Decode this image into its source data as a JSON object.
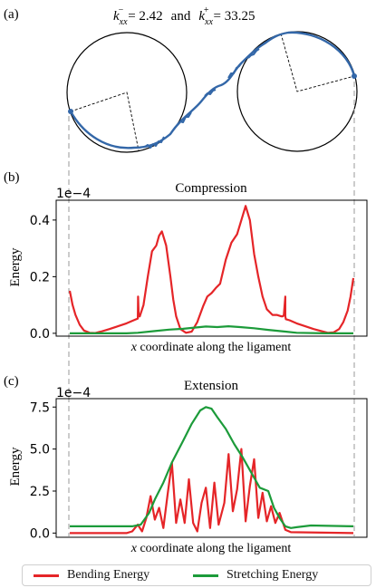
{
  "figure": {
    "panel_a": {
      "label": "(a)",
      "equation_left": "k",
      "equation_left_sub": "xx",
      "equation_left_sup": "−",
      "equation_left_value": "= 2.42",
      "equation_and": "and",
      "equation_right": "k",
      "equation_right_sub": "xx",
      "equation_right_sup": "+",
      "equation_right_value": "= 33.25",
      "ligament_color": "#3367a8"
    },
    "legend": {
      "bending_label": "Bending Energy",
      "stretching_label": "Stretching Energy",
      "bending_color": "#e52528",
      "stretching_color": "#1c9b3a"
    }
  },
  "chart_data": [
    {
      "type": "line",
      "panel_label": "(b)",
      "title": "Compression",
      "xlabel_italic": "x",
      "xlabel_rest": " coordinate along the ligament",
      "ylabel": "Energy",
      "offset_text": "1e−4",
      "ylim": [
        -0.01,
        0.47
      ],
      "yticks": [
        "0.0",
        "0.2",
        "0.4"
      ],
      "ytick_values": [
        0.0,
        0.2,
        0.4
      ],
      "xlim": [
        0,
        1
      ],
      "grid": false,
      "series": [
        {
          "name": "Bending Energy",
          "color": "#e52528",
          "x": [
            0.0,
            0.01,
            0.02,
            0.035,
            0.05,
            0.07,
            0.09,
            0.11,
            0.14,
            0.17,
            0.2,
            0.23,
            0.24,
            0.241,
            0.243,
            0.247,
            0.26,
            0.275,
            0.29,
            0.305,
            0.315,
            0.325,
            0.34,
            0.355,
            0.365,
            0.375,
            0.39,
            0.41,
            0.43,
            0.45,
            0.47,
            0.485,
            0.5,
            0.515,
            0.53,
            0.55,
            0.57,
            0.59,
            0.605,
            0.62,
            0.635,
            0.65,
            0.665,
            0.68,
            0.695,
            0.715,
            0.73,
            0.745,
            0.752,
            0.755,
            0.76,
            0.76,
            0.762,
            0.775,
            0.8,
            0.83,
            0.86,
            0.89,
            0.91,
            0.93,
            0.95,
            0.965,
            0.98,
            0.99,
            1.0
          ],
          "y": [
            0.15,
            0.1,
            0.065,
            0.03,
            0.01,
            0.002,
            0.001,
            0.006,
            0.015,
            0.025,
            0.035,
            0.048,
            0.052,
            0.13,
            0.06,
            0.06,
            0.1,
            0.2,
            0.29,
            0.31,
            0.345,
            0.36,
            0.31,
            0.2,
            0.12,
            0.06,
            0.015,
            0.002,
            0.006,
            0.04,
            0.095,
            0.13,
            0.142,
            0.16,
            0.175,
            0.26,
            0.32,
            0.35,
            0.4,
            0.45,
            0.4,
            0.28,
            0.2,
            0.13,
            0.085,
            0.065,
            0.065,
            0.06,
            0.06,
            0.065,
            0.13,
            0.06,
            0.05,
            0.046,
            0.035,
            0.025,
            0.015,
            0.007,
            0.002,
            0.003,
            0.015,
            0.04,
            0.08,
            0.13,
            0.195
          ]
        },
        {
          "name": "Stretching Energy",
          "color": "#1c9b3a",
          "x": [
            0.0,
            0.1,
            0.2,
            0.24,
            0.3,
            0.35,
            0.4,
            0.44,
            0.48,
            0.52,
            0.56,
            0.6,
            0.65,
            0.7,
            0.76,
            0.8,
            0.9,
            1.0
          ],
          "y": [
            0.0,
            0.0,
            0.0,
            0.002,
            0.008,
            0.013,
            0.016,
            0.02,
            0.024,
            0.022,
            0.025,
            0.022,
            0.018,
            0.012,
            0.006,
            0.002,
            0.0,
            0.0
          ]
        }
      ]
    },
    {
      "type": "line",
      "panel_label": "(c)",
      "title": "Extension",
      "xlabel_italic": "x",
      "xlabel_rest": " coordinate along the ligament",
      "ylabel": "Energy",
      "offset_text": "1e−4",
      "ylim": [
        -0.25,
        8.0
      ],
      "yticks": [
        "0.0",
        "2.5",
        "5.0",
        "7.5"
      ],
      "ytick_values": [
        0.0,
        2.5,
        5.0,
        7.5
      ],
      "xlim": [
        0,
        1
      ],
      "grid": false,
      "series": [
        {
          "name": "Bending Energy",
          "color": "#e52528",
          "x": [
            0.0,
            0.2,
            0.22,
            0.24,
            0.255,
            0.27,
            0.285,
            0.3,
            0.315,
            0.33,
            0.345,
            0.36,
            0.375,
            0.39,
            0.405,
            0.42,
            0.435,
            0.45,
            0.465,
            0.48,
            0.495,
            0.51,
            0.525,
            0.545,
            0.56,
            0.575,
            0.59,
            0.605,
            0.62,
            0.635,
            0.65,
            0.665,
            0.68,
            0.695,
            0.71,
            0.725,
            0.74,
            0.76,
            0.78,
            1.0
          ],
          "y": [
            0.0,
            0.0,
            0.1,
            0.5,
            0.1,
            0.9,
            2.2,
            0.8,
            1.5,
            0.3,
            2.3,
            4.2,
            0.6,
            2.0,
            0.6,
            3.2,
            0.6,
            0.1,
            1.8,
            2.7,
            0.3,
            3.0,
            0.5,
            1.8,
            4.7,
            1.3,
            2.6,
            5.0,
            0.7,
            2.8,
            4.4,
            0.9,
            2.4,
            0.7,
            1.6,
            0.6,
            1.2,
            0.2,
            0.05,
            0.0
          ]
        },
        {
          "name": "Stretching Energy",
          "color": "#1c9b3a",
          "x": [
            0.0,
            0.15,
            0.22,
            0.25,
            0.28,
            0.3,
            0.33,
            0.36,
            0.4,
            0.43,
            0.46,
            0.48,
            0.5,
            0.52,
            0.55,
            0.58,
            0.61,
            0.64,
            0.67,
            0.7,
            0.72,
            0.74,
            0.76,
            0.78,
            0.8,
            0.85,
            1.0
          ],
          "y": [
            0.4,
            0.4,
            0.4,
            0.5,
            1.2,
            2.0,
            3.0,
            4.2,
            5.5,
            6.5,
            7.3,
            7.5,
            7.4,
            6.9,
            6.2,
            5.3,
            4.5,
            3.6,
            2.7,
            2.5,
            1.5,
            0.9,
            0.4,
            0.3,
            0.35,
            0.45,
            0.4
          ]
        }
      ]
    }
  ]
}
